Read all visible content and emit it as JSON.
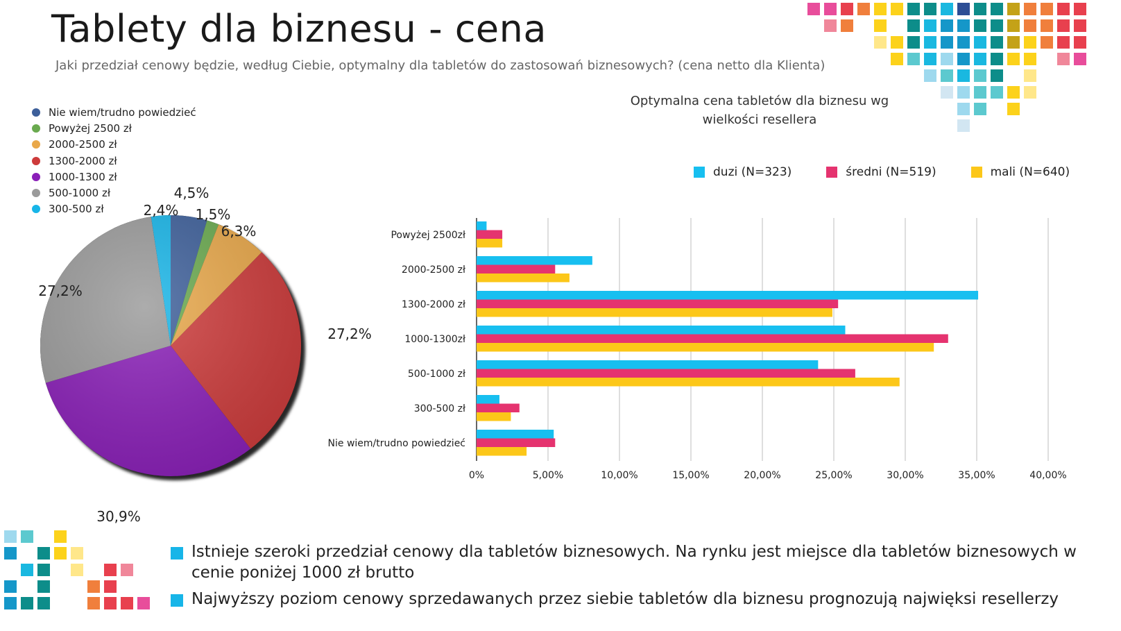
{
  "title": "Tablety dla biznesu - cena",
  "subtitle": "Jaki przedział cenowy  będzie, według Ciebie, optymalny dla tabletów do zastosowań biznesowych? (cena netto dla  Klienta)",
  "pie_legend": [
    {
      "label": "Nie wiem/trudno powiedzieć",
      "color": "#3d5f9a"
    },
    {
      "label": "Powyżej 2500 zł",
      "color": "#6aaa4f"
    },
    {
      "label": "2000-2500 zł",
      "color": "#e9a84a"
    },
    {
      "label": "1300-2000 zł",
      "color": "#cd3b3b"
    },
    {
      "label": "1000-1300 zł",
      "color": "#8a1fb8"
    },
    {
      "label": "500-1000 zł",
      "color": "#9a9a9a"
    },
    {
      "label": "300-500 zł",
      "color": "#17b5e8"
    }
  ],
  "bar_title_line1": "Optymalna cena tabletów dla biznesu wg",
  "bar_title_line2": "wielkości resellera",
  "bullets": [
    "Istnieje szeroki przedział cenowy dla tabletów biznesowych. Na rynku jest miejsce dla tabletów biznesowych w cenie poniżej 1000 zł brutto",
    "Najwyższy poziom cenowy sprzedawanych przez siebie tabletów dla biznesu prognozują najwięksi resellerzy"
  ],
  "chart_data": [
    {
      "type": "pie",
      "slices": [
        {
          "label": "Nie wiem/trudno powiedzieć",
          "value": 4.5,
          "display": "4,5%",
          "color": "#3d5f9a"
        },
        {
          "label": "Powyżej 2500 zł",
          "value": 1.5,
          "display": "1,5%",
          "color": "#6aaa4f"
        },
        {
          "label": "2000-2500 zł",
          "value": 6.3,
          "display": "6,3%",
          "color": "#e9a84a"
        },
        {
          "label": "1300-2000 zł",
          "value": 27.2,
          "display": "27,2%",
          "color": "#cd3b3b"
        },
        {
          "label": "1000-1300 zł",
          "value": 30.9,
          "display": "30,9%",
          "color": "#8a1fb8"
        },
        {
          "label": "500-1000 zł",
          "value": 27.2,
          "display": "27,2%",
          "color": "#9a9a9a"
        },
        {
          "label": "300-500 zł",
          "value": 2.4,
          "display": "2,4%",
          "color": "#17b5e8"
        }
      ]
    },
    {
      "type": "bar",
      "orientation": "horizontal",
      "title": "Optymalna cena tabletów dla biznesu wg wielkości resellera",
      "categories": [
        "Powyżej 2500zł",
        "2000-2500 zł",
        "1300-2000 zł",
        "1000-1300zł",
        "500-1000 zł",
        "300-500 zł",
        "Nie wiem/trudno powiedzieć"
      ],
      "series": [
        {
          "name": "duzi (N=323)",
          "color": "#17bff0",
          "values": [
            0.7,
            8.1,
            35.1,
            25.8,
            23.9,
            1.6,
            5.4
          ]
        },
        {
          "name": "średni (N=519)",
          "color": "#e5336f",
          "values": [
            1.8,
            5.5,
            25.3,
            33.0,
            26.5,
            3.0,
            5.5
          ]
        },
        {
          "name": "mali (N=640)",
          "color": "#fcc719",
          "values": [
            1.8,
            6.5,
            24.9,
            32.0,
            29.6,
            2.4,
            3.5
          ]
        }
      ],
      "xlim": [
        0,
        40
      ],
      "xticks": [
        "0%",
        "5,00%",
        "10,00%",
        "15,00%",
        "20,00%",
        "25,00%",
        "30,00%",
        "35,00%",
        "40,00%"
      ],
      "grid": true,
      "legend": "top"
    }
  ]
}
